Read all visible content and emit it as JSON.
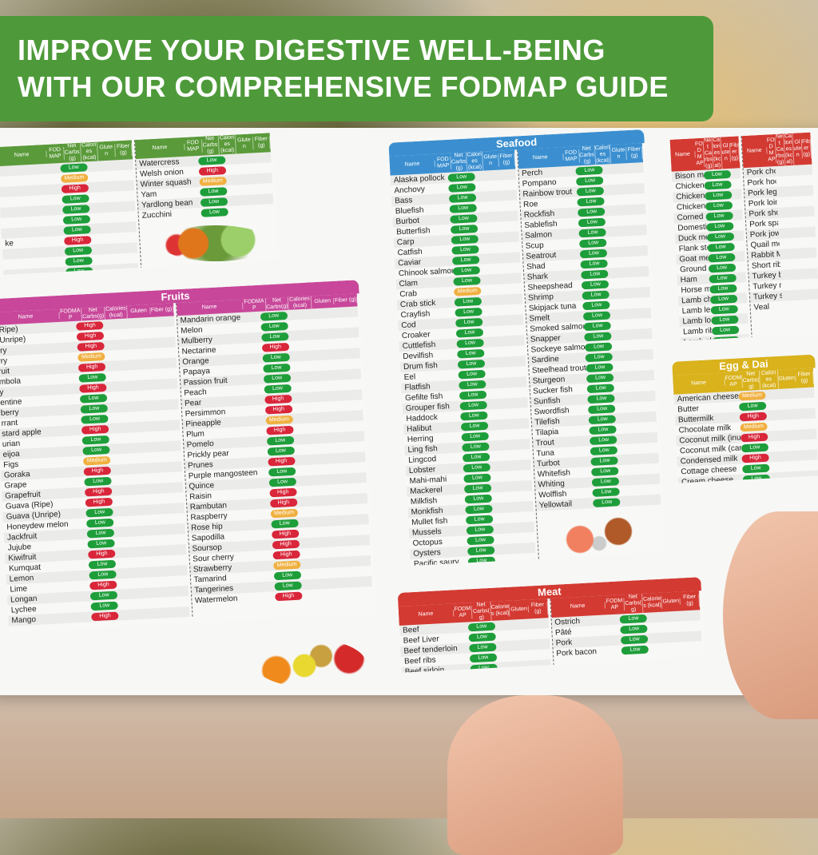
{
  "banner": {
    "line1": "IMPROVE YOUR DIGESTIVE WELL-BEING",
    "line2": "WITH OUR COMPREHENSIVE FODMAP GUIDE",
    "color": "#4e9a3a"
  },
  "headers": {
    "name": "Name",
    "fodmap": "FODMAP",
    "carbs": "Net Carbs(g)",
    "calories": "Calories (kcal)",
    "gluten": "Gluten",
    "fiber": "Fiber (g)"
  },
  "colors": {
    "Low": "#1e9e3a",
    "High": "#d9263a",
    "Medium": "#f0b040",
    "vegetables": "#5a9a3a",
    "fruits": "#c8479a",
    "seafood": "#3b8fd0",
    "meat": "#d33a32",
    "egg": "#d9b21c"
  },
  "sections": {
    "vegetables": {
      "title": "",
      "columns": [
        [
          [
            "",
            "Low"
          ],
          [
            "",
            "Medium"
          ],
          [
            "",
            "High"
          ],
          [
            "",
            "Low"
          ],
          [
            "",
            "Low"
          ],
          [
            "",
            "Low"
          ],
          [
            "",
            "Low"
          ],
          [
            "ke",
            "High"
          ],
          [
            "",
            "Low"
          ],
          [
            "",
            "Low"
          ],
          [
            "",
            "Low"
          ]
        ],
        [
          [
            "Watercress",
            "Low"
          ],
          [
            "Welsh onion",
            "High"
          ],
          [
            "Winter squash",
            "Medium"
          ],
          [
            "Yam",
            "Low"
          ],
          [
            "Yardlong bean",
            "Low"
          ],
          [
            "Zucchini",
            "Low"
          ]
        ]
      ]
    },
    "fruits": {
      "title": "Fruits",
      "columns": [
        [
          [
            "(Ripe)",
            "High"
          ],
          [
            "(Unripe)",
            "High"
          ],
          [
            "rry",
            "High"
          ],
          [
            "rry",
            "Medium"
          ],
          [
            "ruit",
            "High"
          ],
          [
            "mbola",
            "Low"
          ],
          [
            "y",
            "High"
          ],
          [
            "entine",
            "Low"
          ],
          [
            "berry",
            "Low"
          ],
          [
            "rrant",
            "Low"
          ],
          [
            "stard apple",
            "High"
          ],
          [
            "urian",
            "Low"
          ],
          [
            "eijoa",
            "Low"
          ],
          [
            "Figs",
            "Medium"
          ],
          [
            "Goraka",
            "High"
          ],
          [
            "Grape",
            "Low"
          ],
          [
            "Grapefruit",
            "High"
          ],
          [
            "Guava (Ripe)",
            "High"
          ],
          [
            "Guava (Unripe)",
            "Low"
          ],
          [
            "Honeydew melon",
            "Low"
          ],
          [
            "Jackfruit",
            "Low"
          ],
          [
            "Jujube",
            "Low"
          ],
          [
            "Kiwifruit",
            "High"
          ],
          [
            "Kumquat",
            "Low"
          ],
          [
            "Lemon",
            "Low"
          ],
          [
            "Lime",
            "High"
          ],
          [
            "Longan",
            "Low"
          ],
          [
            "Lychee",
            "Low"
          ],
          [
            "Mango",
            "High"
          ]
        ],
        [
          [
            "Mandarin orange",
            "Low"
          ],
          [
            "Melon",
            "Low"
          ],
          [
            "Mulberry",
            "Low"
          ],
          [
            "Nectarine",
            "High"
          ],
          [
            "Orange",
            "Low"
          ],
          [
            "Papaya",
            "Low"
          ],
          [
            "Passion fruit",
            "Low"
          ],
          [
            "Peach",
            "Low"
          ],
          [
            "Pear",
            "High"
          ],
          [
            "Persimmon",
            "High"
          ],
          [
            "Pineapple",
            "Medium"
          ],
          [
            "Plum",
            "High"
          ],
          [
            "Pomelo",
            "Low"
          ],
          [
            "Prickly pear",
            "Low"
          ],
          [
            "Prunes",
            "High"
          ],
          [
            "Purple mangosteen",
            "Low"
          ],
          [
            "Quince",
            "Low"
          ],
          [
            "Raisin",
            "High"
          ],
          [
            "Rambutan",
            "High"
          ],
          [
            "Raspberry",
            "Medium"
          ],
          [
            "Rose hip",
            "Low"
          ],
          [
            "Sapodilla",
            "High"
          ],
          [
            "Soursop",
            "High"
          ],
          [
            "Sour cherry",
            "High"
          ],
          [
            "Strawberry",
            "Medium"
          ],
          [
            "Tamarind",
            "Low"
          ],
          [
            "Tangerines",
            "Low"
          ],
          [
            "Watermelon",
            "High"
          ]
        ]
      ]
    },
    "seafood": {
      "title": "Seafood",
      "columns": [
        [
          [
            "Alaska pollock",
            "Low"
          ],
          [
            "Anchovy",
            "Low"
          ],
          [
            "Bass",
            "Low"
          ],
          [
            "Bluefish",
            "Low"
          ],
          [
            "Burbot",
            "Low"
          ],
          [
            "Butterfish",
            "Low"
          ],
          [
            "Carp",
            "Low"
          ],
          [
            "Catfish",
            "Low"
          ],
          [
            "Caviar",
            "Low"
          ],
          [
            "Chinook salmon",
            "Low"
          ],
          [
            "Clam",
            "Low"
          ],
          [
            "Crab",
            "Medium"
          ],
          [
            "Crab stick",
            "Low"
          ],
          [
            "Crayfish",
            "Low"
          ],
          [
            "Cod",
            "Low"
          ],
          [
            "Croaker",
            "Low"
          ],
          [
            "Cuttlefish",
            "Low"
          ],
          [
            "Devilfish",
            "Low"
          ],
          [
            "Drum fish",
            "Low"
          ],
          [
            "Eel",
            "Low"
          ],
          [
            "Flatfish",
            "Low"
          ],
          [
            "Gefilte fish",
            "Low"
          ],
          [
            "Grouper fish",
            "Low"
          ],
          [
            "Haddock",
            "Low"
          ],
          [
            "Halibut",
            "Low"
          ],
          [
            "Herring",
            "Low"
          ],
          [
            "Ling fish",
            "Low"
          ],
          [
            "Lingcod",
            "Low"
          ],
          [
            "Lobster",
            "Low"
          ],
          [
            "Mahi-mahi",
            "Low"
          ],
          [
            "Mackerel",
            "Low"
          ],
          [
            "Milkfish",
            "Low"
          ],
          [
            "Monkfish",
            "Low"
          ],
          [
            "Mullet fish",
            "Low"
          ],
          [
            "Mussels",
            "Low"
          ],
          [
            "Octopus",
            "Low"
          ],
          [
            "Oysters",
            "Low"
          ],
          [
            "Pacific saury",
            "Low"
          ]
        ],
        [
          [
            "Perch",
            "Low"
          ],
          [
            "Pompano",
            "Low"
          ],
          [
            "Rainbow trout",
            "Low"
          ],
          [
            "Roe",
            "Low"
          ],
          [
            "Rockfish",
            "Low"
          ],
          [
            "Sablefish",
            "Low"
          ],
          [
            "Salmon",
            "Low"
          ],
          [
            "Scup",
            "Low"
          ],
          [
            "Seatrout",
            "Low"
          ],
          [
            "Shad",
            "Low"
          ],
          [
            "Shark",
            "Low"
          ],
          [
            "Sheepshead",
            "Low"
          ],
          [
            "Shrimp",
            "Low"
          ],
          [
            "Skipjack tuna",
            "Low"
          ],
          [
            "Smelt",
            "Low"
          ],
          [
            "Smoked salmon",
            "Low"
          ],
          [
            "Snapper",
            "Low"
          ],
          [
            "Sockeye salmon",
            "Low"
          ],
          [
            "Sardine",
            "Low"
          ],
          [
            "Steelhead trout",
            "Low"
          ],
          [
            "Sturgeon",
            "Low"
          ],
          [
            "Sucker fish",
            "Low"
          ],
          [
            "Sunfish",
            "Low"
          ],
          [
            "Swordfish",
            "Low"
          ],
          [
            "Tilefish",
            "Low"
          ],
          [
            "Tilapia",
            "Low"
          ],
          [
            "Trout",
            "Low"
          ],
          [
            "Tuna",
            "Low"
          ],
          [
            "Turbot",
            "Low"
          ],
          [
            "Whitefish",
            "Low"
          ],
          [
            "Whiting",
            "Low"
          ],
          [
            "Wolffish",
            "Low"
          ],
          [
            "Yellowtail",
            "Low"
          ]
        ]
      ]
    },
    "meat_top": {
      "title": "",
      "columns": [
        [
          [
            "Bison meat",
            "Low"
          ],
          [
            "Chicken breast",
            "Low"
          ],
          [
            "Chicken meat",
            "Low"
          ],
          [
            "Chicken thigh",
            "Low"
          ],
          [
            "Corned beef",
            "Low"
          ],
          [
            "Domestic goose",
            "Low"
          ],
          [
            "Duck meat",
            "Low"
          ],
          [
            "Flank steak",
            "Low"
          ],
          [
            "Goat meat",
            "Low"
          ],
          [
            "Ground beef",
            "Low"
          ],
          [
            "Ham",
            "Low"
          ],
          [
            "Horse meat",
            "Low"
          ],
          [
            "Lamb chop",
            "Low"
          ],
          [
            "Lamb leg",
            "Low"
          ],
          [
            "Lamb loin",
            "Low"
          ],
          [
            "Lamb ribs",
            "Low"
          ],
          [
            "Lamb shoulder",
            "Low"
          ],
          [
            "Liver",
            "Low"
          ]
        ],
        [
          [
            "Pork chop",
            ""
          ],
          [
            "Pork hock",
            ""
          ],
          [
            "Pork leg",
            ""
          ],
          [
            "Pork loin",
            ""
          ],
          [
            "Pork shoulder",
            ""
          ],
          [
            "Pork spare ribs",
            ""
          ],
          [
            "Pork jowl",
            ""
          ],
          [
            "Quail meat",
            ""
          ],
          [
            "Rabbit Meat",
            ""
          ],
          [
            "Short ribs",
            ""
          ],
          [
            "Turkey brea",
            ""
          ],
          [
            "Turkey me",
            ""
          ],
          [
            "Turkey sa",
            ""
          ],
          [
            "Veal",
            ""
          ]
        ]
      ]
    },
    "egg_dairy": {
      "title": "Egg & Dai",
      "columns": [
        [
          [
            "American cheese",
            "Medium"
          ],
          [
            "Butter",
            "Low"
          ],
          [
            "Buttermilk",
            "High"
          ],
          [
            "Chocolate milk",
            "Medium"
          ],
          [
            "Coconut milk (inulin)",
            "High"
          ],
          [
            "Coconut milk (canned)",
            "Low"
          ],
          [
            "Condensed milk",
            "High"
          ],
          [
            "Cottage cheese",
            "Low"
          ],
          [
            "Cream cheese",
            "Low"
          ]
        ]
      ]
    },
    "meat_bottom": {
      "title": "Meat",
      "columns": [
        [
          [
            "Beef",
            "Low"
          ],
          [
            "Beef Liver",
            "Low"
          ],
          [
            "Beef tenderloin",
            "Low"
          ],
          [
            "Beef ribs",
            "Low"
          ],
          [
            "Beef sirloin",
            "Low"
          ]
        ],
        [
          [
            "Ostrich",
            "Low"
          ],
          [
            "Pâté",
            "Low"
          ],
          [
            "Pork",
            "Low"
          ],
          [
            "Pork bacon",
            "Low"
          ]
        ]
      ]
    }
  }
}
